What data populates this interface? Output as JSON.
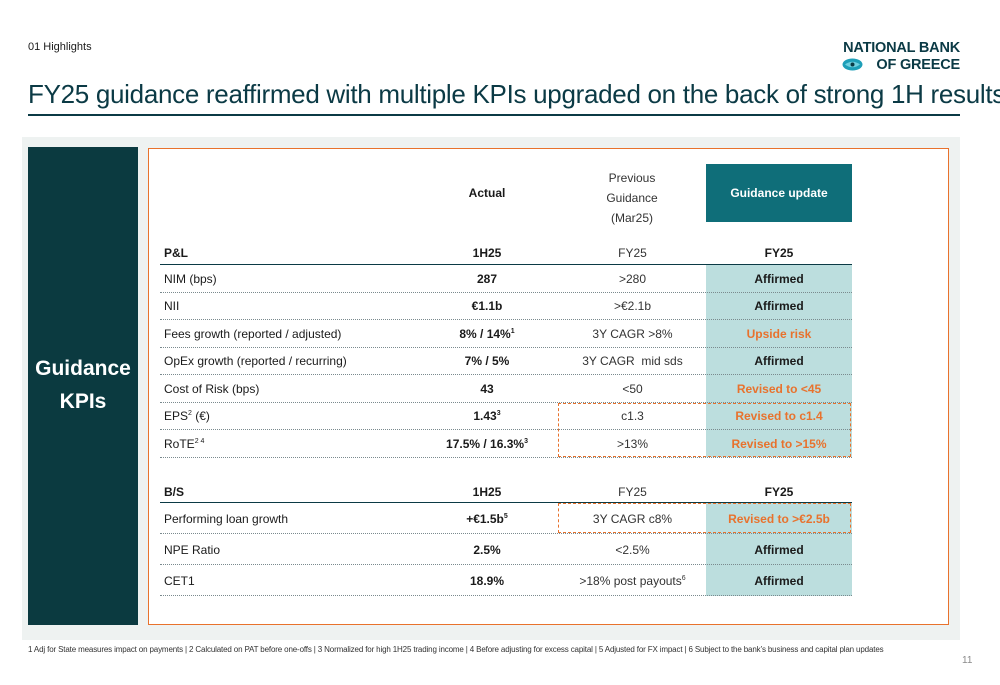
{
  "section_label": "01 Highlights",
  "logo": {
    "line1": "NATIONAL BANK",
    "line2": "OF GREECE"
  },
  "title": "FY25 guidance reaffirmed with multiple KPIs upgraded on the back of strong 1H results",
  "side_label": {
    "line1": "Guidance",
    "line2": "KPIs"
  },
  "headers": {
    "actual": "Actual",
    "previous_line1": "Previous",
    "previous_line2": "Guidance",
    "previous_line3": "(Mar25)",
    "guidance_update": "Guidance update"
  },
  "pl_section": {
    "label": "P&L",
    "actual": "1H25",
    "previous": "FY25",
    "update": "FY25"
  },
  "pl_rows": [
    {
      "label": "NIM (bps)",
      "label_sup": "",
      "actual": "287",
      "actual_sup": "",
      "previous": ">280",
      "previous_sup": "",
      "update": "Affirmed",
      "update_color": "#1a1a1a"
    },
    {
      "label": "NII",
      "label_sup": "",
      "actual": "€1.1b",
      "actual_sup": "",
      "previous": ">€2.1b",
      "previous_sup": "",
      "update": "Affirmed",
      "update_color": "#1a1a1a"
    },
    {
      "label": "Fees growth (reported / adjusted)",
      "label_sup": "",
      "actual": "8% / 14%",
      "actual_sup": "1",
      "previous": "3Y CAGR >8%",
      "previous_sup": "",
      "update": "Upside risk",
      "update_color": "#e8722d"
    },
    {
      "label": "OpEx growth (reported / recurring)",
      "label_sup": "",
      "actual": "7% / 5%",
      "actual_sup": "",
      "previous": "3Y CAGR  mid sds",
      "previous_sup": "",
      "update": "Affirmed",
      "update_color": "#1a1a1a"
    },
    {
      "label": "Cost of Risk (bps)",
      "label_sup": "",
      "actual": "43",
      "actual_sup": "",
      "previous": "<50",
      "previous_sup": "",
      "update": "Revised to <45",
      "update_color": "#e8722d"
    },
    {
      "label": "EPS",
      "label_sup": "2",
      "label_suffix": " (€)",
      "actual": "1.43",
      "actual_sup": "3",
      "previous": "c1.3",
      "previous_sup": "",
      "update": "Revised to c1.4",
      "update_color": "#e8722d"
    },
    {
      "label": "RoTE",
      "label_sup": "2 4",
      "label_suffix": "",
      "actual": "17.5% / 16.3%",
      "actual_sup": "3",
      "previous": ">13%",
      "previous_sup": "",
      "update": "Revised to >15%",
      "update_color": "#e8722d"
    }
  ],
  "bs_section": {
    "label": "B/S",
    "actual": "1H25",
    "previous": "FY25",
    "update": "FY25"
  },
  "bs_rows": [
    {
      "label": "Performing loan growth",
      "actual": "+€1.5b",
      "actual_sup": "5",
      "previous": "3Y CAGR c8%",
      "previous_sup": "",
      "update": "Revised to >€2.5b",
      "update_color": "#e8722d"
    },
    {
      "label": "NPE Ratio",
      "actual": "2.5%",
      "actual_sup": "",
      "previous": "<2.5%",
      "previous_sup": "",
      "update": "Affirmed",
      "update_color": "#1a1a1a"
    },
    {
      "label": "CET1",
      "actual": "18.9%",
      "actual_sup": "",
      "previous": ">18% post payouts",
      "previous_sup": "6",
      "update": "Affirmed",
      "update_color": "#1a1a1a"
    }
  ],
  "colors": {
    "dark_teal": "#0b3a40",
    "teal": "#0f6e79",
    "light_teal": "#bcdede",
    "orange": "#e8722d",
    "panel": "#eef2f1"
  },
  "footnote": "1 Adj for State measures impact on payments | 2 Calculated on PAT before one-offs | 3 Normalized for high 1H25 trading income | 4 Before adjusting for excess capital | 5 Adjusted for FX impact | 6 Subject to the bank’s business and capital plan updates",
  "page_number": "11"
}
